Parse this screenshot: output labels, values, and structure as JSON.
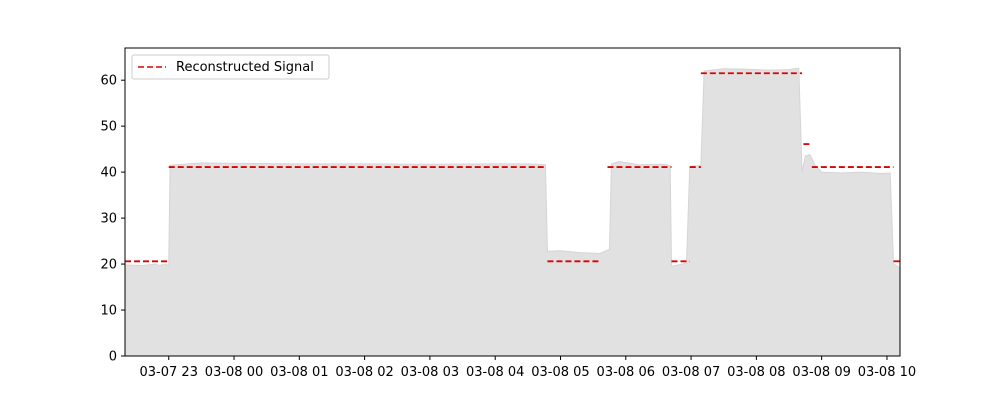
{
  "chart_data": {
    "type": "area",
    "title": "",
    "xlabel": "",
    "ylabel": "",
    "ylim": [
      0,
      67
    ],
    "xlim_hours": [
      -0.67,
      11.2
    ],
    "grid": false,
    "legend": {
      "placement": "top-left",
      "entries": [
        "Reconstructed Signal"
      ]
    },
    "y_ticks": [
      0,
      10,
      20,
      30,
      40,
      50,
      60
    ],
    "x_ticks": [
      {
        "label": "03-07 23",
        "hour": 0
      },
      {
        "label": "03-08 00",
        "hour": 1
      },
      {
        "label": "03-08 01",
        "hour": 2
      },
      {
        "label": "03-08 02",
        "hour": 3
      },
      {
        "label": "03-08 03",
        "hour": 4
      },
      {
        "label": "03-08 04",
        "hour": 5
      },
      {
        "label": "03-08 05",
        "hour": 6
      },
      {
        "label": "03-08 06",
        "hour": 7
      },
      {
        "label": "03-08 07",
        "hour": 8
      },
      {
        "label": "03-08 08",
        "hour": 9
      },
      {
        "label": "03-08 09",
        "hour": 10
      },
      {
        "label": "03-08 10",
        "hour": 11
      }
    ],
    "area_series": {
      "color": "#e0e1e0",
      "points": [
        [
          -0.67,
          19.8
        ],
        [
          -0.4,
          19.7
        ],
        [
          -0.2,
          20.0
        ],
        [
          0.0,
          19.6
        ],
        [
          -0.1,
          19.9
        ],
        [
          -0.17,
          19.8
        ],
        [
          -0.13,
          19.7
        ],
        [
          -0.1,
          19.8
        ],
        [
          -0.05,
          19.9
        ],
        [
          -0.02,
          19.8
        ],
        [
          0.0,
          19.8
        ],
        [
          0.02,
          41.5
        ],
        [
          0.3,
          41.8
        ],
        [
          0.5,
          42.0
        ],
        [
          1.0,
          41.9
        ],
        [
          2.0,
          41.8
        ],
        [
          3.0,
          41.8
        ],
        [
          4.0,
          41.7
        ],
        [
          5.0,
          41.8
        ],
        [
          5.5,
          41.8
        ],
        [
          5.77,
          41.6
        ],
        [
          5.8,
          22.8
        ],
        [
          6.0,
          22.9
        ],
        [
          6.3,
          22.5
        ],
        [
          6.6,
          22.3
        ],
        [
          6.75,
          23.2
        ],
        [
          6.78,
          41.8
        ],
        [
          6.9,
          42.3
        ],
        [
          7.2,
          41.6
        ],
        [
          7.6,
          41.7
        ],
        [
          7.68,
          41.4
        ],
        [
          7.7,
          19.5
        ],
        [
          7.8,
          19.8
        ],
        [
          7.93,
          20.2
        ],
        [
          7.98,
          41.2
        ],
        [
          8.15,
          41.5
        ],
        [
          8.2,
          62.0
        ],
        [
          8.5,
          62.5
        ],
        [
          8.8,
          62.4
        ],
        [
          9.2,
          62.2
        ],
        [
          9.5,
          62.3
        ],
        [
          9.65,
          62.6
        ],
        [
          9.7,
          40.0
        ],
        [
          9.75,
          43.5
        ],
        [
          9.82,
          43.8
        ],
        [
          9.9,
          41.5
        ],
        [
          10.0,
          40.0
        ],
        [
          10.3,
          39.8
        ],
        [
          10.6,
          40.0
        ],
        [
          10.9,
          39.7
        ],
        [
          11.05,
          39.8
        ],
        [
          11.1,
          20.0
        ],
        [
          11.15,
          19.6
        ],
        [
          11.2,
          19.2
        ]
      ]
    },
    "reconstructed_signal": {
      "name": "Reconstructed Signal",
      "color": "#dd0000",
      "segments": [
        {
          "x": [
            -0.67,
            0.0
          ],
          "y": 20.6
        },
        {
          "x": [
            0.0,
            5.77
          ],
          "y": 41.1
        },
        {
          "x": [
            5.8,
            6.6
          ],
          "y": 20.6
        },
        {
          "x": [
            6.72,
            7.7
          ],
          "y": 41.1
        },
        {
          "x": [
            7.7,
            7.98
          ],
          "y": 20.6
        },
        {
          "x": [
            7.98,
            8.15
          ],
          "y": 41.1
        },
        {
          "x": [
            8.15,
            9.7
          ],
          "y": 61.5
        },
        {
          "x": [
            9.72,
            9.82
          ],
          "y": 46.1
        },
        {
          "x": [
            9.85,
            11.1
          ],
          "y": 41.1
        },
        {
          "x": [
            11.1,
            11.2
          ],
          "y": 20.6
        }
      ]
    }
  }
}
